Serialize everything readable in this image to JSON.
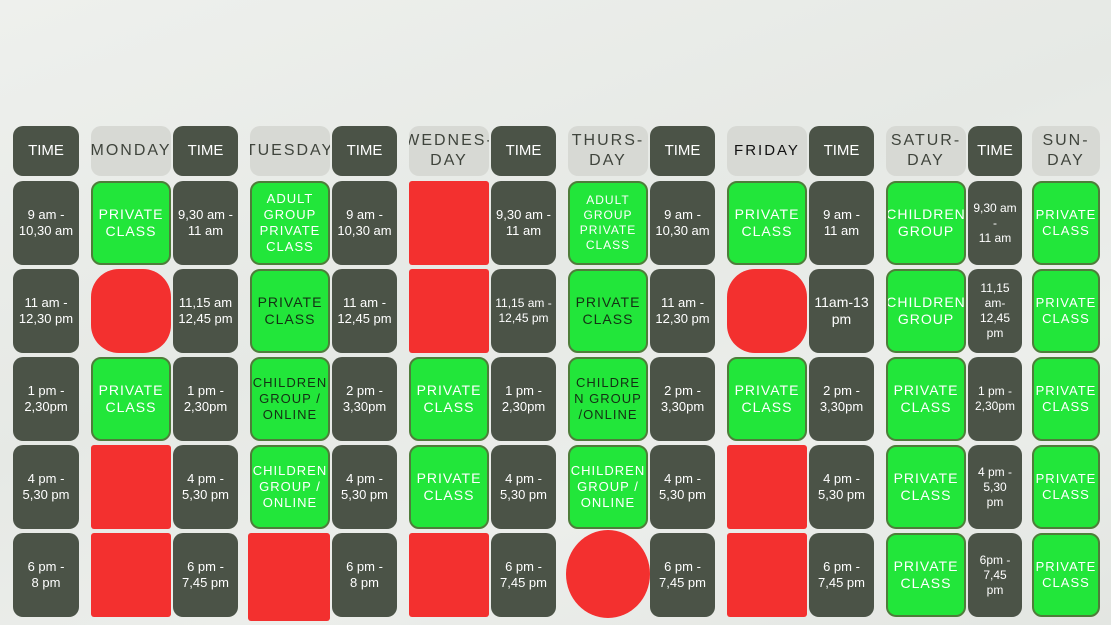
{
  "headers": {
    "time": "TIME",
    "monday": "MONDAY",
    "tuesday": "TUESDAY",
    "wednesday": "WEDNES-\nDAY",
    "thursday": "THURS-\nDAY",
    "friday": "FRIDAY",
    "saturday": "SATUR-\nDAY",
    "sunday": "SUN-\nDAY"
  },
  "times": {
    "col1": [
      "9 am -\n10,30 am",
      "11 am -\n12,30 pm",
      "1 pm -\n2,30pm",
      "4 pm -\n5,30 pm",
      "6 pm -\n8 pm"
    ],
    "col2": [
      "9,30 am -\n11 am",
      "11,15 am\n12,45 pm",
      "1 pm -\n2,30pm",
      "4 pm -\n5,30 pm",
      "6 pm -\n7,45 pm"
    ],
    "col3": [
      "9 am -\n10,30 am",
      "11 am -\n12,45 pm",
      "2 pm -\n3,30pm",
      "4 pm -\n5,30 pm",
      "6 pm -\n8 pm"
    ],
    "col4": [
      "9,30 am -\n11 am",
      "11,15 am -\n12,45 pm",
      "1 pm -\n2,30pm",
      "4 pm -\n5,30 pm",
      "6 pm -\n7,45 pm"
    ],
    "col5": [
      "9 am -\n10,30 am",
      "11 am -\n12,30 pm",
      "2 pm -\n3,30pm",
      "4 pm -\n5,30 pm",
      "6 pm -\n7,45 pm"
    ],
    "col6": [
      "9 am -\n11 am",
      "11am-13\npm",
      "2 pm -\n3,30pm",
      "4 pm -\n5,30 pm",
      "6 pm -\n7,45 pm"
    ],
    "col7": [
      "9,30 am\n-\n11 am",
      "11,15\nam-\n12,45\npm",
      "1 pm -\n2,30pm",
      "4 pm -\n5,30\npm",
      "6pm -\n7,45\npm"
    ]
  },
  "classes": {
    "monday": [
      "PRIVATE\nCLASS",
      "",
      "PRIVATE\nCLASS",
      "",
      ""
    ],
    "tuesday": [
      "ADULT\nGROUP\nPRIVATE\nCLASS",
      "PRIVATE\nCLASS",
      "CHILDREN\nGROUP /\nONLINE",
      "CHILDREN\nGROUP /\nONLINE",
      ""
    ],
    "wednesday": [
      "",
      "",
      "PRIVATE\nCLASS",
      "PRIVATE\nCLASS",
      ""
    ],
    "thursday": [
      "ADULT\nGROUP\nPRIVATE\nCLASS",
      "PRIVATE\nCLASS",
      "CHILDRE\nN GROUP\n/ONLINE",
      "CHILDREN\nGROUP /\nONLINE",
      ""
    ],
    "friday": [
      "PRIVATE\nCLASS",
      "",
      "PRIVATE\nCLASS",
      "",
      ""
    ],
    "saturday": [
      "CHILDREN\nGROUP",
      "CHILDREN\nGROUP",
      "PRIVATE\nCLASS",
      "PRIVATE\nCLASS",
      "PRIVATE\nCLASS"
    ],
    "sunday": [
      "PRIVATE\nCLASS",
      "PRIVATE\nCLASS",
      "PRIVATE\nCLASS",
      "PRIVATE\nCLASS",
      "PRIVATE\nCLASS"
    ]
  },
  "colors": {
    "dark_cell": "#4b5347",
    "header_light": "#d7d9d4",
    "available_green": "#22e63a",
    "booked_red": "#f3302f"
  }
}
